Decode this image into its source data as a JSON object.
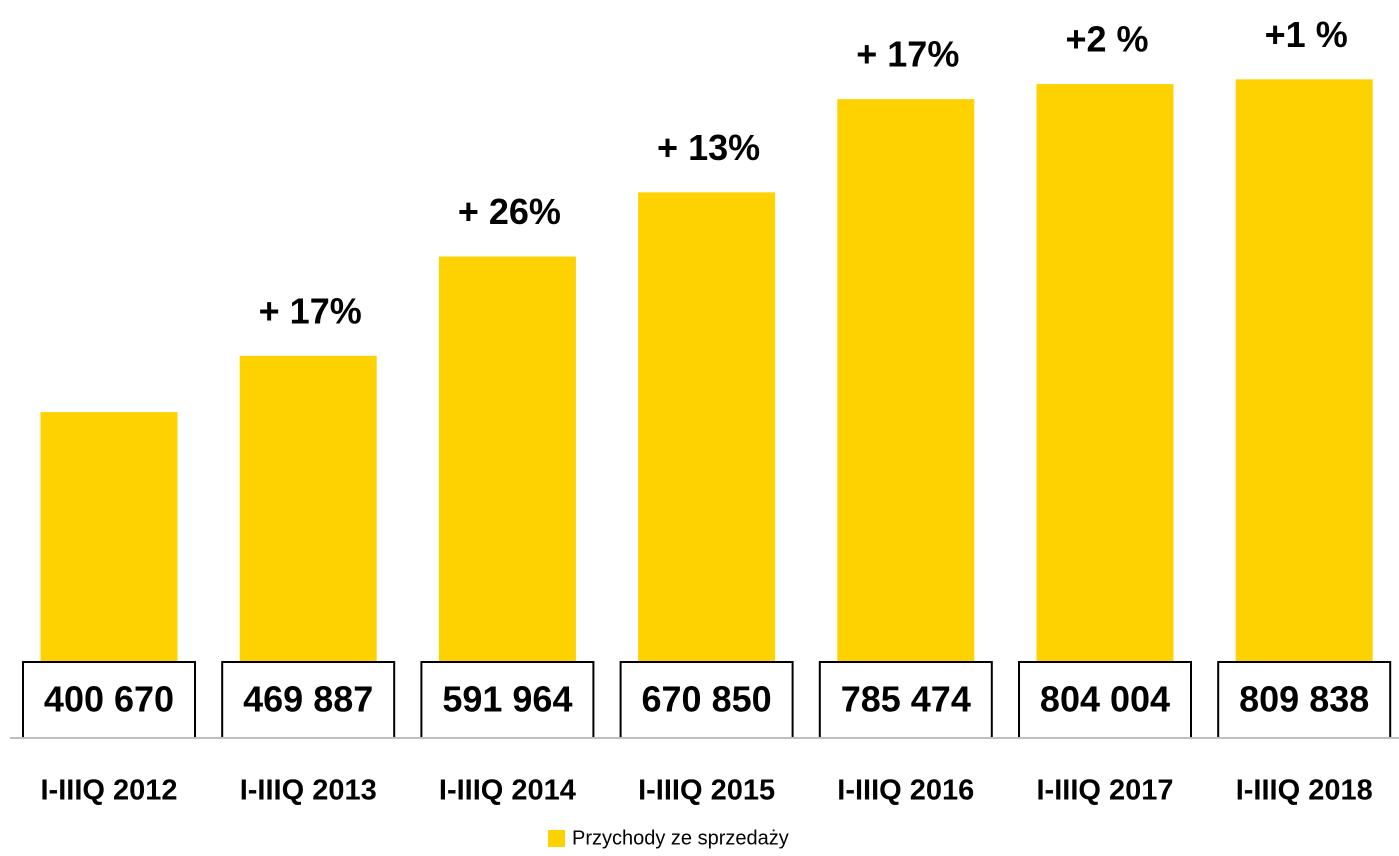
{
  "chart_data": {
    "type": "bar",
    "categories": [
      "I-IIIQ 2012",
      "I-IIIQ 2013",
      "I-IIIQ 2014",
      "I-IIIQ 2015",
      "I-IIIQ 2016",
      "I-IIIQ 2017",
      "I-IIIQ 2018"
    ],
    "series": [
      {
        "name": "Przychody ze sprzedaży",
        "color": "#fdd200",
        "values": [
          400670,
          469887,
          591964,
          670850,
          785474,
          804004,
          809838
        ],
        "value_labels": [
          "400 670",
          "469 887",
          "591 964",
          "670 850",
          "785 474",
          "804 004",
          "809 838"
        ]
      }
    ],
    "annotations": [
      null,
      "+ 17%",
      "+ 26%",
      "+ 13%",
      "+ 17%",
      "+2 %",
      "+1 %"
    ],
    "ylim": [
      0,
      900000
    ],
    "legend": "bottom"
  }
}
